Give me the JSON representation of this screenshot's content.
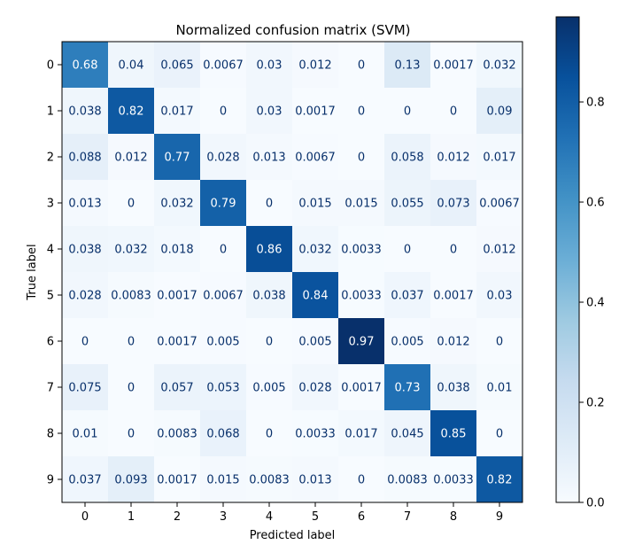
{
  "chart_data": {
    "type": "heatmap",
    "title": "Normalized confusion matrix (SVM)",
    "xlabel": "Predicted label",
    "ylabel": "True label",
    "x_categories": [
      "0",
      "1",
      "2",
      "3",
      "4",
      "5",
      "6",
      "7",
      "8",
      "9"
    ],
    "y_categories": [
      "0",
      "1",
      "2",
      "3",
      "4",
      "5",
      "6",
      "7",
      "8",
      "9"
    ],
    "values": [
      [
        "0.68",
        "0.04",
        "0.065",
        "0.0067",
        "0.03",
        "0.012",
        "0",
        "0.13",
        "0.0017",
        "0.032"
      ],
      [
        "0.038",
        "0.82",
        "0.017",
        "0",
        "0.03",
        "0.0017",
        "0",
        "0",
        "0",
        "0.09"
      ],
      [
        "0.088",
        "0.012",
        "0.77",
        "0.028",
        "0.013",
        "0.0067",
        "0",
        "0.058",
        "0.012",
        "0.017"
      ],
      [
        "0.013",
        "0",
        "0.032",
        "0.79",
        "0",
        "0.015",
        "0.015",
        "0.055",
        "0.073",
        "0.0067"
      ],
      [
        "0.038",
        "0.032",
        "0.018",
        "0",
        "0.86",
        "0.032",
        "0.0033",
        "0",
        "0",
        "0.012"
      ],
      [
        "0.028",
        "0.0083",
        "0.0017",
        "0.0067",
        "0.038",
        "0.84",
        "0.0033",
        "0.037",
        "0.0017",
        "0.03"
      ],
      [
        "0",
        "0",
        "0.0017",
        "0.005",
        "0",
        "0.005",
        "0.97",
        "0.005",
        "0.012",
        "0"
      ],
      [
        "0.075",
        "0",
        "0.057",
        "0.053",
        "0.005",
        "0.028",
        "0.0017",
        "0.73",
        "0.038",
        "0.01"
      ],
      [
        "0.01",
        "0",
        "0.0083",
        "0.068",
        "0",
        "0.0033",
        "0.017",
        "0.045",
        "0.85",
        "0"
      ],
      [
        "0.037",
        "0.093",
        "0.0017",
        "0.015",
        "0.0083",
        "0.013",
        "0",
        "0.0083",
        "0.0033",
        "0.82"
      ]
    ],
    "colormap": "Blues",
    "colorbar": {
      "range": [
        0,
        0.97
      ],
      "ticks": [
        "0.0",
        "0.2",
        "0.4",
        "0.6",
        "0.8"
      ],
      "tick_values": [
        0,
        0.2,
        0.4,
        0.6,
        0.8
      ]
    },
    "text_color_light": "#ffffff",
    "text_color_dark": "#08306b"
  }
}
